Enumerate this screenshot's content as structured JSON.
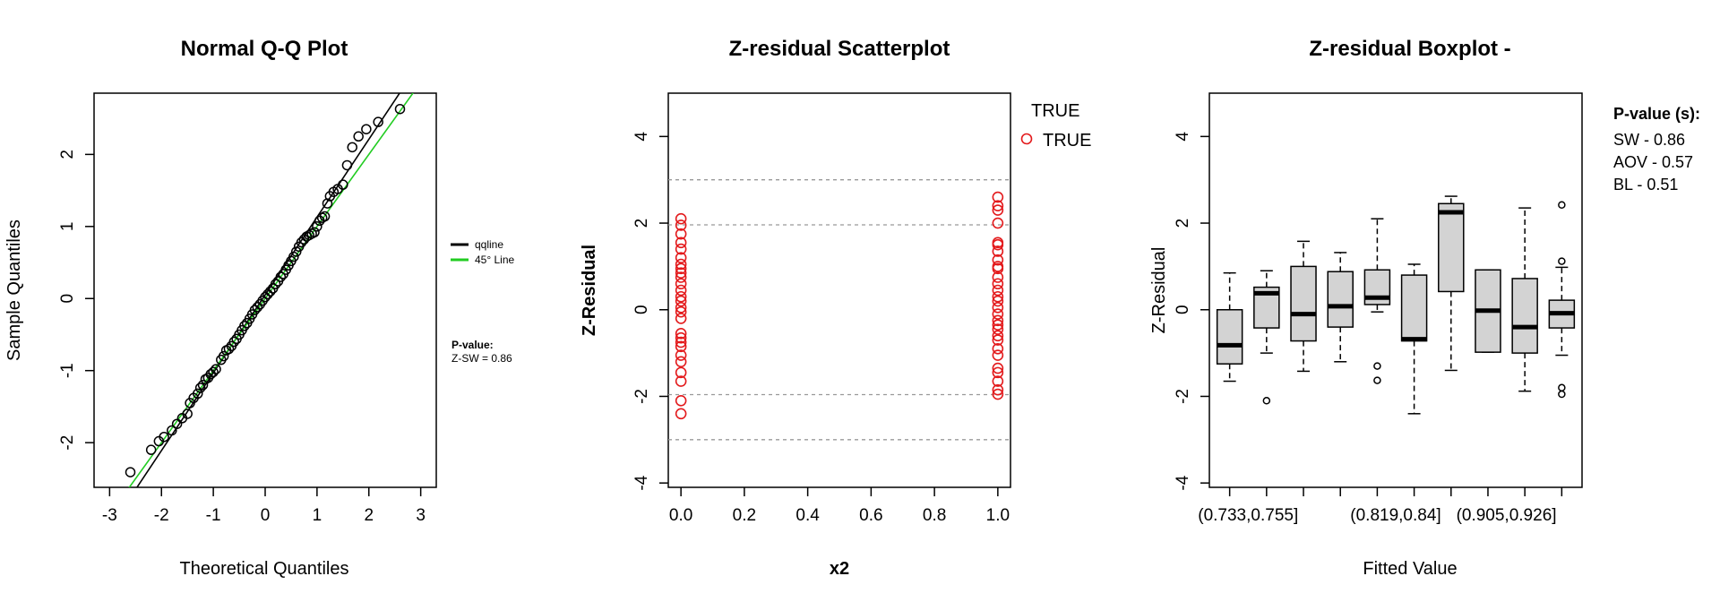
{
  "chart_data": [
    {
      "type": "scatter",
      "title": "Normal Q-Q Plot",
      "xlabel": "Theoretical Quantiles",
      "ylabel": "Sample Quantiles",
      "xlim": [
        -3.3,
        3.3
      ],
      "ylim": [
        -2.62,
        2.85
      ],
      "x_ticks": [
        "-3",
        "-2",
        "-1",
        "0",
        "1",
        "2",
        "3"
      ],
      "x_tick_values": [
        -3,
        -2,
        -1,
        0,
        1,
        2,
        3
      ],
      "y_ticks": [
        "-2",
        "-1",
        "0",
        "1",
        "2"
      ],
      "y_tick_values": [
        -2,
        -1,
        0,
        1,
        2
      ],
      "lines": {
        "qqline": {
          "intercept": 0.05,
          "slope": 1.08
        },
        "identity": {
          "intercept": 0,
          "slope": 1
        }
      },
      "legend": [
        "qqline",
        "45° Line"
      ],
      "legend_colors": [
        "#000000",
        "#22cc22"
      ],
      "annotation_title": "P-value:",
      "annotation": "Z-SW = 0.86",
      "points": [
        [
          -2.6,
          -2.41
        ],
        [
          -2.2,
          -2.1
        ],
        [
          -2.05,
          -1.98
        ],
        [
          -1.95,
          -1.92
        ],
        [
          -1.8,
          -1.83
        ],
        [
          -1.7,
          -1.74
        ],
        [
          -1.6,
          -1.66
        ],
        [
          -1.5,
          -1.6
        ],
        [
          -1.45,
          -1.45
        ],
        [
          -1.38,
          -1.38
        ],
        [
          -1.3,
          -1.32
        ],
        [
          -1.25,
          -1.24
        ],
        [
          -1.2,
          -1.2
        ],
        [
          -1.15,
          -1.12
        ],
        [
          -1.1,
          -1.1
        ],
        [
          -1.05,
          -1.05
        ],
        [
          -1.0,
          -1.02
        ],
        [
          -0.95,
          -0.98
        ],
        [
          -0.85,
          -0.85
        ],
        [
          -0.8,
          -0.8
        ],
        [
          -0.75,
          -0.72
        ],
        [
          -0.7,
          -0.7
        ],
        [
          -0.65,
          -0.66
        ],
        [
          -0.6,
          -0.6
        ],
        [
          -0.55,
          -0.56
        ],
        [
          -0.5,
          -0.5
        ],
        [
          -0.45,
          -0.44
        ],
        [
          -0.4,
          -0.38
        ],
        [
          -0.35,
          -0.34
        ],
        [
          -0.3,
          -0.28
        ],
        [
          -0.25,
          -0.22
        ],
        [
          -0.2,
          -0.16
        ],
        [
          -0.15,
          -0.12
        ],
        [
          -0.1,
          -0.08
        ],
        [
          -0.05,
          -0.03
        ],
        [
          0.0,
          0.02
        ],
        [
          0.05,
          0.06
        ],
        [
          0.1,
          0.1
        ],
        [
          0.15,
          0.14
        ],
        [
          0.2,
          0.2
        ],
        [
          0.25,
          0.24
        ],
        [
          0.3,
          0.3
        ],
        [
          0.35,
          0.34
        ],
        [
          0.4,
          0.4
        ],
        [
          0.45,
          0.46
        ],
        [
          0.5,
          0.52
        ],
        [
          0.55,
          0.58
        ],
        [
          0.6,
          0.65
        ],
        [
          0.65,
          0.72
        ],
        [
          0.7,
          0.78
        ],
        [
          0.75,
          0.82
        ],
        [
          0.8,
          0.86
        ],
        [
          0.85,
          0.88
        ],
        [
          0.9,
          0.9
        ],
        [
          0.95,
          0.92
        ],
        [
          1.0,
          1.0
        ],
        [
          1.05,
          1.08
        ],
        [
          1.1,
          1.12
        ],
        [
          1.15,
          1.14
        ],
        [
          1.2,
          1.32
        ],
        [
          1.25,
          1.42
        ],
        [
          1.32,
          1.48
        ],
        [
          1.4,
          1.52
        ],
        [
          1.5,
          1.58
        ],
        [
          1.58,
          1.85
        ],
        [
          1.68,
          2.1
        ],
        [
          1.8,
          2.25
        ],
        [
          1.95,
          2.35
        ],
        [
          2.18,
          2.45
        ],
        [
          2.6,
          2.63
        ]
      ]
    },
    {
      "type": "scatter",
      "title": "Z-residual Scatterplot",
      "xlabel": "x2",
      "ylabel": "Z-Residual",
      "xlim": [
        -0.04,
        1.04
      ],
      "ylim": [
        -4.1,
        5.0
      ],
      "x_ticks": [
        "0.0",
        "0.2",
        "0.4",
        "0.6",
        "0.8",
        "1.0"
      ],
      "x_tick_values": [
        0,
        0.2,
        0.4,
        0.6,
        0.8,
        1.0
      ],
      "y_ticks": [
        "-4",
        "-2",
        "0",
        "2",
        "4"
      ],
      "y_tick_values": [
        -4,
        -2,
        0,
        2,
        4
      ],
      "reference_lines": [
        3,
        1.96,
        -1.96,
        -3
      ],
      "legend_title": "TRUE",
      "legend": [
        "TRUE"
      ],
      "legend_colors": [
        "#e31a1c"
      ],
      "series": [
        {
          "x": 0,
          "values": [
            2.1,
            1.95,
            1.75,
            1.55,
            1.4,
            1.2,
            1.05,
            0.95,
            0.85,
            0.75,
            0.6,
            0.45,
            0.3,
            0.2,
            0.05,
            -0.05,
            -0.2,
            -0.55,
            -0.65,
            -0.75,
            -0.85,
            -1.05,
            -1.2,
            -1.45,
            -1.65,
            -2.1,
            -2.4
          ]
        },
        {
          "x": 1,
          "values": [
            2.6,
            2.4,
            2.3,
            2.0,
            1.55,
            1.5,
            1.35,
            1.15,
            1.0,
            0.95,
            0.75,
            0.6,
            0.45,
            0.3,
            0.2,
            0.05,
            -0.1,
            -0.25,
            -0.35,
            -0.45,
            -0.6,
            -0.7,
            -0.9,
            -1.05,
            -1.35,
            -1.45,
            -1.65,
            -1.85,
            -1.95
          ]
        }
      ]
    },
    {
      "type": "box",
      "title": "Z-residual Boxplot -",
      "xlabel": "Fitted Value",
      "ylabel": "Z-Residual",
      "ylim": [
        -4.1,
        5.0
      ],
      "y_ticks": [
        "-4",
        "-2",
        "0",
        "2",
        "4"
      ],
      "y_tick_values": [
        -4,
        -2,
        0,
        2,
        4
      ],
      "x_tick_labels": [
        "(0.733,0.755]",
        "(0.819,0.84]",
        "(0.905,0.926]"
      ],
      "x_tick_label_positions": [
        1.5,
        5.5,
        8.5
      ],
      "boxes": [
        {
          "min": -1.65,
          "q1": -1.25,
          "median": -0.82,
          "q3": 0.0,
          "max": 0.85,
          "outliers": []
        },
        {
          "min": -1.0,
          "q1": -0.42,
          "median": 0.38,
          "q3": 0.52,
          "max": 0.9,
          "outliers": [
            -2.1
          ]
        },
        {
          "min": -1.42,
          "q1": -0.72,
          "median": -0.1,
          "q3": 1.0,
          "max": 1.58,
          "outliers": []
        },
        {
          "min": -1.2,
          "q1": -0.4,
          "median": 0.08,
          "q3": 0.88,
          "max": 1.32,
          "outliers": []
        },
        {
          "min": -0.05,
          "q1": 0.12,
          "median": 0.28,
          "q3": 0.92,
          "max": 2.1,
          "outliers": [
            -1.3,
            -1.63
          ]
        },
        {
          "min": -2.4,
          "q1": -0.72,
          "median": -0.68,
          "q3": 0.8,
          "max": 1.05,
          "outliers": []
        },
        {
          "min": -1.4,
          "q1": 0.42,
          "median": 2.25,
          "q3": 2.45,
          "max": 2.62,
          "outliers": []
        },
        {
          "min": -0.98,
          "q1": -0.98,
          "median": -0.02,
          "q3": 0.92,
          "max": 0.92,
          "outliers": []
        },
        {
          "min": -1.88,
          "q1": -1.0,
          "median": -0.4,
          "q3": 0.72,
          "max": 2.35,
          "outliers": []
        },
        {
          "min": -1.05,
          "q1": -0.42,
          "median": -0.08,
          "q3": 0.22,
          "max": 0.98,
          "outliers": [
            2.42,
            1.12,
            -1.8,
            -1.95
          ]
        }
      ],
      "pvalue_title": "P-value (s):",
      "pvalues": [
        "SW - 0.86",
        "AOV - 0.57",
        "BL - 0.51"
      ]
    }
  ]
}
